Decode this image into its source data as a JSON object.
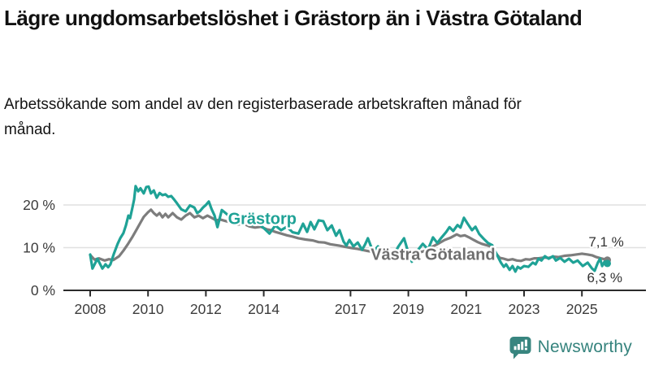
{
  "header": {
    "title": "Lägre ungdomsarbetslöshet i Grästorp än i Västra Götaland",
    "subtitle": "Arbetssökande som andel av den registerbaserade arbetskraften månad för månad."
  },
  "footer": {
    "brand": "Newsworthy"
  },
  "colors": {
    "grastorp": "#1fa296",
    "vastra_gotaland": "#7d7d7d",
    "grid": "#e0e0e0",
    "axis": "#2b2b2b",
    "axis_text": "#3c3c3c",
    "logo": "#38857f"
  },
  "chart_data": {
    "type": "line",
    "title": "Lägre ungdomsarbetslöshet i Grästorp än i Västra Götaland",
    "subtitle": "Arbetssökande som andel av den registerbaserade arbetskraften månad för månad.",
    "unit": "%",
    "ylim": [
      0,
      26
    ],
    "x_range": [
      2008,
      2025.9
    ],
    "grid": "horizontal",
    "legend_position": "inline-labels",
    "x_ticks": [
      2008,
      2010,
      2012,
      2014,
      2017,
      2019,
      2021,
      2023,
      2025
    ],
    "y_ticks": [
      {
        "value": 0,
        "label": "0 %"
      },
      {
        "value": 10,
        "label": "10 %"
      },
      {
        "value": 20,
        "label": "20 %"
      }
    ],
    "series": [
      {
        "id": "vastra-gotaland",
        "name": "Västra Götaland",
        "color": "#7d7d7d",
        "end_label": "7,1 %",
        "end_value": 7.1,
        "points": [
          [
            2008.0,
            8.3
          ],
          [
            2008.15,
            7.2
          ],
          [
            2008.3,
            7.5
          ],
          [
            2008.5,
            7.0
          ],
          [
            2008.65,
            7.3
          ],
          [
            2008.8,
            7.1
          ],
          [
            2009.0,
            8.0
          ],
          [
            2009.15,
            9.3
          ],
          [
            2009.3,
            10.8
          ],
          [
            2009.45,
            12.4
          ],
          [
            2009.6,
            14.2
          ],
          [
            2009.75,
            16.0
          ],
          [
            2009.85,
            17.2
          ],
          [
            2010.0,
            18.3
          ],
          [
            2010.1,
            18.9
          ],
          [
            2010.2,
            18.1
          ],
          [
            2010.3,
            17.5
          ],
          [
            2010.4,
            18.1
          ],
          [
            2010.5,
            17.1
          ],
          [
            2010.6,
            17.9
          ],
          [
            2010.7,
            17.1
          ],
          [
            2010.85,
            18.1
          ],
          [
            2011.0,
            17.1
          ],
          [
            2011.15,
            16.6
          ],
          [
            2011.3,
            17.5
          ],
          [
            2011.45,
            18.1
          ],
          [
            2011.6,
            17.1
          ],
          [
            2011.75,
            17.5
          ],
          [
            2011.9,
            16.9
          ],
          [
            2012.05,
            17.5
          ],
          [
            2012.2,
            17.0
          ],
          [
            2012.35,
            16.4
          ],
          [
            2012.5,
            16.6
          ],
          [
            2012.7,
            16.2
          ],
          [
            2012.9,
            15.8
          ],
          [
            2013.1,
            15.4
          ],
          [
            2013.3,
            15.6
          ],
          [
            2013.5,
            15.0
          ],
          [
            2013.7,
            14.7
          ],
          [
            2013.9,
            14.9
          ],
          [
            2014.1,
            14.3
          ],
          [
            2014.25,
            14.1
          ],
          [
            2014.4,
            13.7
          ],
          [
            2014.6,
            13.3
          ],
          [
            2014.8,
            12.9
          ],
          [
            2015.0,
            12.6
          ],
          [
            2015.2,
            12.2
          ],
          [
            2015.45,
            11.9
          ],
          [
            2015.7,
            11.7
          ],
          [
            2015.9,
            11.3
          ],
          [
            2016.1,
            11.2
          ],
          [
            2016.3,
            10.8
          ],
          [
            2016.6,
            10.5
          ],
          [
            2016.8,
            10.2
          ],
          [
            2017.05,
            9.9
          ],
          [
            2017.25,
            9.7
          ],
          [
            2017.45,
            9.4
          ],
          [
            2017.6,
            9.2
          ],
          [
            2017.9,
            8.9
          ],
          [
            2018.2,
            8.7
          ],
          [
            2018.5,
            8.5
          ],
          [
            2018.8,
            8.5
          ],
          [
            2019.1,
            8.6
          ],
          [
            2019.4,
            8.9
          ],
          [
            2019.65,
            9.4
          ],
          [
            2019.85,
            10.3
          ],
          [
            2020.05,
            11.0
          ],
          [
            2020.25,
            11.8
          ],
          [
            2020.45,
            12.3
          ],
          [
            2020.67,
            13.1
          ],
          [
            2020.8,
            12.7
          ],
          [
            2020.95,
            12.9
          ],
          [
            2021.1,
            12.4
          ],
          [
            2021.26,
            11.8
          ],
          [
            2021.4,
            11.3
          ],
          [
            2021.54,
            10.9
          ],
          [
            2021.7,
            10.6
          ],
          [
            2021.87,
            10.2
          ],
          [
            2022.0,
            8.9
          ],
          [
            2022.16,
            7.6
          ],
          [
            2022.3,
            7.4
          ],
          [
            2022.45,
            7.1
          ],
          [
            2022.6,
            7.3
          ],
          [
            2022.75,
            7.0
          ],
          [
            2022.9,
            6.9
          ],
          [
            2023.05,
            7.3
          ],
          [
            2023.2,
            7.2
          ],
          [
            2023.35,
            7.5
          ],
          [
            2023.5,
            7.5
          ],
          [
            2023.7,
            7.7
          ],
          [
            2023.85,
            7.6
          ],
          [
            2024.0,
            7.9
          ],
          [
            2024.2,
            7.8
          ],
          [
            2024.4,
            8.1
          ],
          [
            2024.6,
            8.2
          ],
          [
            2024.8,
            8.4
          ],
          [
            2025.0,
            8.6
          ],
          [
            2025.2,
            8.4
          ],
          [
            2025.35,
            8.2
          ],
          [
            2025.5,
            7.8
          ],
          [
            2025.65,
            7.5
          ],
          [
            2025.78,
            7.3
          ],
          [
            2025.88,
            7.1
          ]
        ]
      },
      {
        "id": "grastorp",
        "name": "Grästorp",
        "color": "#1fa296",
        "end_label": "6,3 %",
        "end_value": 6.3,
        "points": [
          [
            2008.0,
            8.4
          ],
          [
            2008.08,
            5.1
          ],
          [
            2008.25,
            7.4
          ],
          [
            2008.42,
            5.1
          ],
          [
            2008.53,
            6.1
          ],
          [
            2008.62,
            5.4
          ],
          [
            2008.7,
            6.1
          ],
          [
            2008.82,
            8.6
          ],
          [
            2008.95,
            10.9
          ],
          [
            2009.04,
            12.2
          ],
          [
            2009.15,
            13.4
          ],
          [
            2009.24,
            15.3
          ],
          [
            2009.32,
            17.5
          ],
          [
            2009.38,
            16.9
          ],
          [
            2009.46,
            19.4
          ],
          [
            2009.52,
            21.3
          ],
          [
            2009.57,
            24.4
          ],
          [
            2009.66,
            23.2
          ],
          [
            2009.74,
            23.9
          ],
          [
            2009.85,
            22.7
          ],
          [
            2009.94,
            24.2
          ],
          [
            2010.02,
            24.3
          ],
          [
            2010.1,
            22.7
          ],
          [
            2010.2,
            23.4
          ],
          [
            2010.3,
            21.7
          ],
          [
            2010.4,
            22.8
          ],
          [
            2010.5,
            22.3
          ],
          [
            2010.6,
            22.5
          ],
          [
            2010.7,
            21.9
          ],
          [
            2010.8,
            22.1
          ],
          [
            2010.9,
            21.3
          ],
          [
            2011.0,
            20.4
          ],
          [
            2011.15,
            19.0
          ],
          [
            2011.3,
            18.5
          ],
          [
            2011.45,
            19.9
          ],
          [
            2011.6,
            19.4
          ],
          [
            2011.7,
            18.1
          ],
          [
            2011.8,
            18.6
          ],
          [
            2011.9,
            19.4
          ],
          [
            2012.0,
            20.0
          ],
          [
            2012.1,
            20.8
          ],
          [
            2012.2,
            19.0
          ],
          [
            2012.3,
            17.5
          ],
          [
            2012.4,
            14.8
          ],
          [
            2012.55,
            18.8
          ],
          [
            2012.7,
            18.0
          ],
          [
            2012.85,
            17.0
          ],
          [
            2013.0,
            16.4
          ],
          [
            2013.2,
            15.6
          ],
          [
            2013.4,
            16.2
          ],
          [
            2013.6,
            15.3
          ],
          [
            2013.8,
            15.8
          ],
          [
            2014.0,
            14.6
          ],
          [
            2014.2,
            13.3
          ],
          [
            2014.4,
            15.2
          ],
          [
            2014.6,
            14.1
          ],
          [
            2014.8,
            14.9
          ],
          [
            2015.0,
            13.6
          ],
          [
            2015.2,
            13.3
          ],
          [
            2015.36,
            15.6
          ],
          [
            2015.5,
            13.7
          ],
          [
            2015.62,
            16.0
          ],
          [
            2015.75,
            14.3
          ],
          [
            2015.9,
            16.4
          ],
          [
            2016.06,
            16.2
          ],
          [
            2016.2,
            14.1
          ],
          [
            2016.35,
            15.2
          ],
          [
            2016.5,
            12.8
          ],
          [
            2016.62,
            14.1
          ],
          [
            2016.76,
            11.4
          ],
          [
            2016.86,
            10.5
          ],
          [
            2016.96,
            11.8
          ],
          [
            2017.1,
            10.3
          ],
          [
            2017.25,
            11.2
          ],
          [
            2017.4,
            9.5
          ],
          [
            2017.5,
            10.7
          ],
          [
            2017.6,
            12.2
          ],
          [
            2017.78,
            9.0
          ],
          [
            2017.95,
            10.3
          ],
          [
            2018.1,
            7.4
          ],
          [
            2018.3,
            9.3
          ],
          [
            2018.5,
            8.2
          ],
          [
            2018.65,
            10.2
          ],
          [
            2018.85,
            12.2
          ],
          [
            2019.0,
            8.8
          ],
          [
            2019.12,
            6.7
          ],
          [
            2019.3,
            9.2
          ],
          [
            2019.5,
            10.9
          ],
          [
            2019.68,
            9.6
          ],
          [
            2019.85,
            12.4
          ],
          [
            2020.0,
            11.1
          ],
          [
            2020.15,
            12.4
          ],
          [
            2020.3,
            13.6
          ],
          [
            2020.42,
            14.8
          ],
          [
            2020.55,
            13.9
          ],
          [
            2020.7,
            15.3
          ],
          [
            2020.8,
            14.7
          ],
          [
            2020.92,
            17.0
          ],
          [
            2021.05,
            15.6
          ],
          [
            2021.2,
            14.1
          ],
          [
            2021.32,
            14.9
          ],
          [
            2021.45,
            13.2
          ],
          [
            2021.6,
            12.1
          ],
          [
            2021.75,
            11.1
          ],
          [
            2021.9,
            10.6
          ],
          [
            2022.05,
            8.5
          ],
          [
            2022.2,
            6.5
          ],
          [
            2022.3,
            5.5
          ],
          [
            2022.38,
            6.1
          ],
          [
            2022.5,
            4.8
          ],
          [
            2022.6,
            5.7
          ],
          [
            2022.7,
            4.4
          ],
          [
            2022.78,
            5.5
          ],
          [
            2022.88,
            5.1
          ],
          [
            2023.0,
            5.7
          ],
          [
            2023.15,
            5.5
          ],
          [
            2023.3,
            6.5
          ],
          [
            2023.4,
            6.1
          ],
          [
            2023.5,
            7.4
          ],
          [
            2023.6,
            7.0
          ],
          [
            2023.72,
            8.0
          ],
          [
            2023.85,
            7.4
          ],
          [
            2024.0,
            8.0
          ],
          [
            2024.1,
            7.0
          ],
          [
            2024.25,
            7.6
          ],
          [
            2024.4,
            6.7
          ],
          [
            2024.55,
            7.4
          ],
          [
            2024.7,
            6.5
          ],
          [
            2024.85,
            7.0
          ],
          [
            2025.03,
            5.7
          ],
          [
            2025.2,
            6.5
          ],
          [
            2025.35,
            5.1
          ],
          [
            2025.44,
            4.6
          ],
          [
            2025.55,
            6.5
          ],
          [
            2025.63,
            7.4
          ],
          [
            2025.7,
            5.7
          ],
          [
            2025.78,
            6.7
          ],
          [
            2025.88,
            6.3
          ]
        ]
      }
    ],
    "annotations": [
      {
        "id": "grastorp-label",
        "text": "Grästorp",
        "year": 2013.95,
        "value": 15.5,
        "anchor": "middle",
        "size": 20,
        "bold": true,
        "color": "#1fa296"
      },
      {
        "id": "vastra-gotaland-label",
        "text": "Västra Götaland",
        "year": 2019.85,
        "value": 7.1,
        "anchor": "middle",
        "size": 20,
        "bold": true,
        "color": "#6e6e6e"
      },
      {
        "id": "end-value-vastra-gotaland",
        "text": "7,1 %",
        "year": 2026.45,
        "value": 10.3,
        "anchor": "end",
        "size": 17,
        "bold": false,
        "color": "#333333"
      },
      {
        "id": "end-value-grastorp",
        "text": "6,3 %",
        "year": 2026.4,
        "value": 1.9,
        "anchor": "end",
        "size": 17,
        "bold": false,
        "color": "#333333"
      }
    ]
  }
}
